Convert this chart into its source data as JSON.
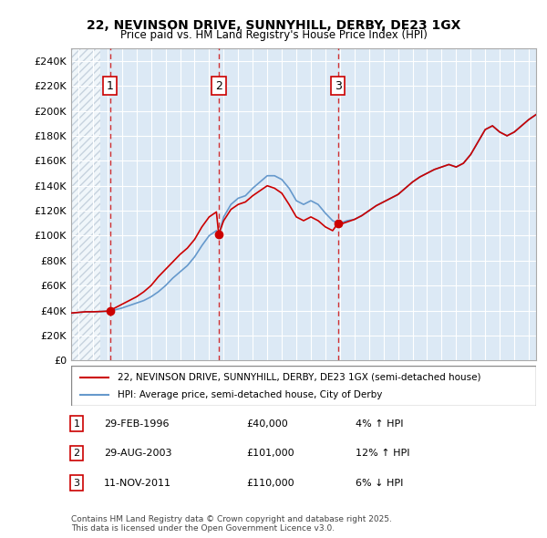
{
  "title1": "22, NEVINSON DRIVE, SUNNYHILL, DERBY, DE23 1GX",
  "title2": "Price paid vs. HM Land Registry's House Price Index (HPI)",
  "background_color": "#dce9f5",
  "plot_bg_color": "#dce9f5",
  "hatch_color": "#c0d0e0",
  "ylabel_values": [
    "£0",
    "£20K",
    "£40K",
    "£60K",
    "£80K",
    "£100K",
    "£120K",
    "£140K",
    "£160K",
    "£180K",
    "£200K",
    "£220K",
    "£240K"
  ],
  "ytick_values": [
    0,
    20000,
    40000,
    60000,
    80000,
    100000,
    120000,
    140000,
    160000,
    180000,
    200000,
    220000,
    240000
  ],
  "ylim": [
    0,
    250000
  ],
  "xlim_start": 1993.5,
  "xlim_end": 2025.5,
  "sales": [
    {
      "date_num": 1996.17,
      "price": 40000,
      "label": "1"
    },
    {
      "date_num": 2003.66,
      "price": 101000,
      "label": "2"
    },
    {
      "date_num": 2011.87,
      "price": 110000,
      "label": "3"
    }
  ],
  "sale_color": "#cc0000",
  "hpi_color": "#6699cc",
  "legend_line1": "22, NEVINSON DRIVE, SUNNYHILL, DERBY, DE23 1GX (semi-detached house)",
  "legend_line2": "HPI: Average price, semi-detached house, City of Derby",
  "table_rows": [
    {
      "num": "1",
      "date": "29-FEB-1996",
      "price": "£40,000",
      "change": "4% ↑ HPI"
    },
    {
      "num": "2",
      "date": "29-AUG-2003",
      "price": "£101,000",
      "change": "12% ↑ HPI"
    },
    {
      "num": "3",
      "date": "11-NOV-2011",
      "price": "£110,000",
      "change": "6% ↓ HPI"
    }
  ],
  "footnote": "Contains HM Land Registry data © Crown copyright and database right 2025.\nThis data is licensed under the Open Government Licence v3.0.",
  "hpi_data": {
    "years": [
      1993.5,
      1994.0,
      1994.5,
      1995.0,
      1995.5,
      1996.0,
      1996.17,
      1996.5,
      1997.0,
      1997.5,
      1998.0,
      1998.5,
      1999.0,
      1999.5,
      2000.0,
      2000.5,
      2001.0,
      2001.5,
      2002.0,
      2002.5,
      2003.0,
      2003.5,
      2003.66,
      2004.0,
      2004.5,
      2005.0,
      2005.5,
      2006.0,
      2006.5,
      2007.0,
      2007.5,
      2008.0,
      2008.5,
      2009.0,
      2009.5,
      2010.0,
      2010.5,
      2011.0,
      2011.5,
      2011.87,
      2012.0,
      2012.5,
      2013.0,
      2013.5,
      2014.0,
      2014.5,
      2015.0,
      2015.5,
      2016.0,
      2016.5,
      2017.0,
      2017.5,
      2018.0,
      2018.5,
      2019.0,
      2019.5,
      2020.0,
      2020.5,
      2021.0,
      2021.5,
      2022.0,
      2022.5,
      2023.0,
      2023.5,
      2024.0,
      2024.5,
      2025.0,
      2025.5
    ],
    "values": [
      38000,
      38500,
      39000,
      39000,
      39200,
      39500,
      40000,
      40500,
      42000,
      44000,
      46000,
      48000,
      51000,
      55000,
      60000,
      66000,
      71000,
      76000,
      83000,
      92000,
      100000,
      104000,
      101000,
      115000,
      125000,
      130000,
      132000,
      138000,
      143000,
      148000,
      148000,
      145000,
      138000,
      128000,
      125000,
      128000,
      125000,
      118000,
      112000,
      110000,
      110000,
      112000,
      113000,
      116000,
      120000,
      124000,
      127000,
      130000,
      133000,
      138000,
      143000,
      147000,
      150000,
      153000,
      155000,
      157000,
      155000,
      158000,
      165000,
      175000,
      185000,
      188000,
      183000,
      180000,
      183000,
      188000,
      193000,
      197000
    ]
  },
  "sale_line_data": {
    "years": [
      1993.5,
      1994.0,
      1994.5,
      1995.0,
      1995.5,
      1996.0,
      1996.17,
      1996.5,
      1997.0,
      1997.5,
      1998.0,
      1998.5,
      1999.0,
      1999.5,
      2000.0,
      2000.5,
      2001.0,
      2001.5,
      2002.0,
      2002.5,
      2003.0,
      2003.5,
      2003.66,
      2004.0,
      2004.5,
      2005.0,
      2005.5,
      2006.0,
      2006.5,
      2007.0,
      2007.5,
      2008.0,
      2008.5,
      2009.0,
      2009.5,
      2010.0,
      2010.5,
      2011.0,
      2011.5,
      2011.87,
      2012.0,
      2012.5,
      2013.0,
      2013.5,
      2014.0,
      2014.5,
      2015.0,
      2015.5,
      2016.0,
      2016.5,
      2017.0,
      2017.5,
      2018.0,
      2018.5,
      2019.0,
      2019.5,
      2020.0,
      2020.5,
      2021.0,
      2021.5,
      2022.0,
      2022.5,
      2023.0,
      2023.5,
      2024.0,
      2024.5,
      2025.0,
      2025.5
    ],
    "values": [
      38000,
      38500,
      39000,
      39000,
      39200,
      39500,
      40000,
      42000,
      45000,
      48000,
      51000,
      55000,
      60000,
      67000,
      73000,
      79000,
      85000,
      90000,
      97000,
      107000,
      115000,
      119000,
      101000,
      112000,
      121000,
      125000,
      127000,
      132000,
      136000,
      140000,
      138000,
      134000,
      125000,
      115000,
      112000,
      115000,
      112000,
      107000,
      104000,
      110000,
      109000,
      111000,
      113000,
      116000,
      120000,
      124000,
      127000,
      130000,
      133000,
      138000,
      143000,
      147000,
      150000,
      153000,
      155000,
      157000,
      155000,
      158000,
      165000,
      175000,
      185000,
      188000,
      183000,
      180000,
      183000,
      188000,
      193000,
      197000
    ]
  }
}
